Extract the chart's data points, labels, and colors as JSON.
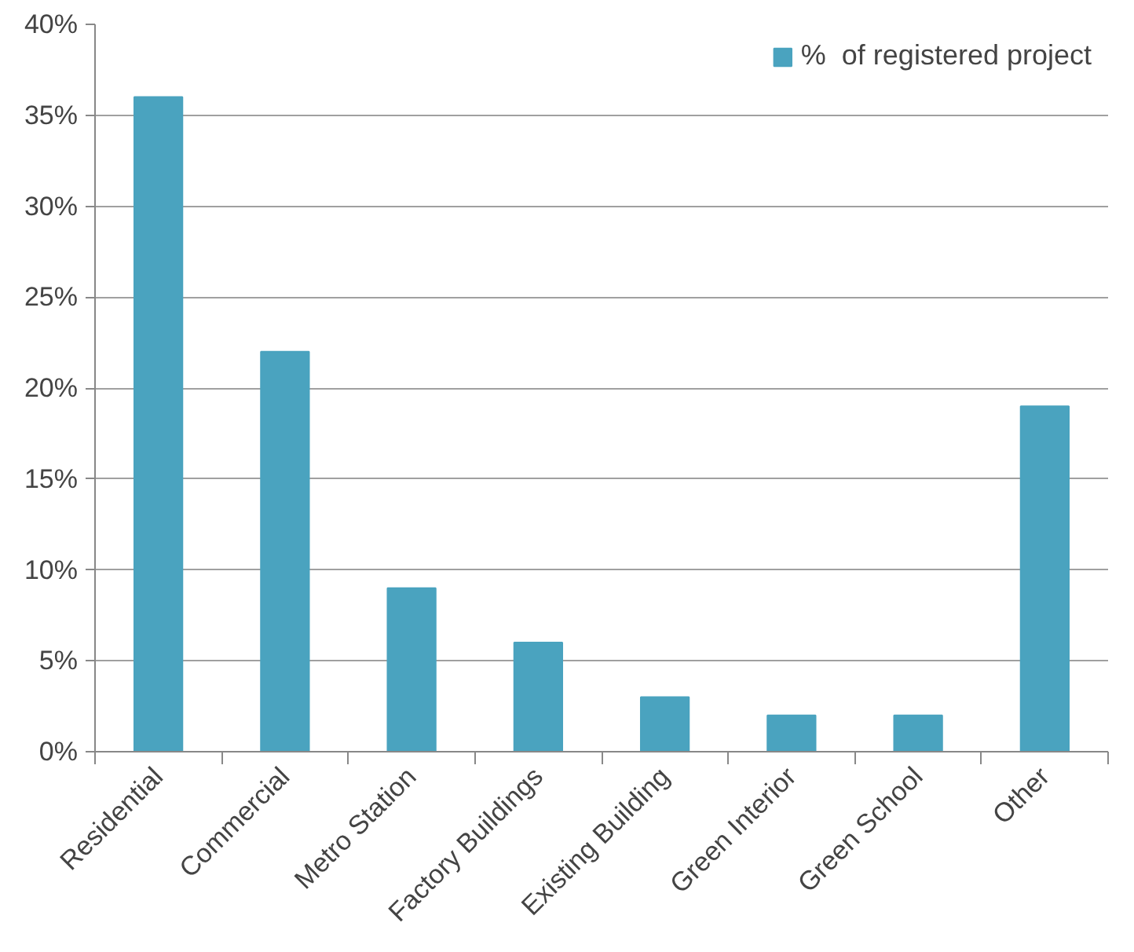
{
  "chart_data": {
    "type": "bar",
    "categories": [
      "Residential",
      "Commercial",
      "Metro Station",
      "Factory Buildings",
      "Existing Building",
      "Green Interior",
      "Green School",
      "Other"
    ],
    "series": [
      {
        "name": "%  of registered project",
        "color": "#4aa3bf",
        "values": [
          36,
          22,
          9,
          6,
          3,
          2,
          2,
          19
        ]
      }
    ],
    "ylim": [
      0,
      40
    ],
    "yticks": [
      {
        "value": 0,
        "label": "0%"
      },
      {
        "value": 5,
        "label": "5%"
      },
      {
        "value": 10,
        "label": "10%"
      },
      {
        "value": 15,
        "label": "15%"
      },
      {
        "value": 20,
        "label": "20%"
      },
      {
        "value": 25,
        "label": "25%"
      },
      {
        "value": 30,
        "label": "30%"
      },
      {
        "value": 35,
        "label": "35%"
      },
      {
        "value": 40,
        "label": "40%"
      }
    ],
    "grid": "y",
    "legend": "top right"
  }
}
